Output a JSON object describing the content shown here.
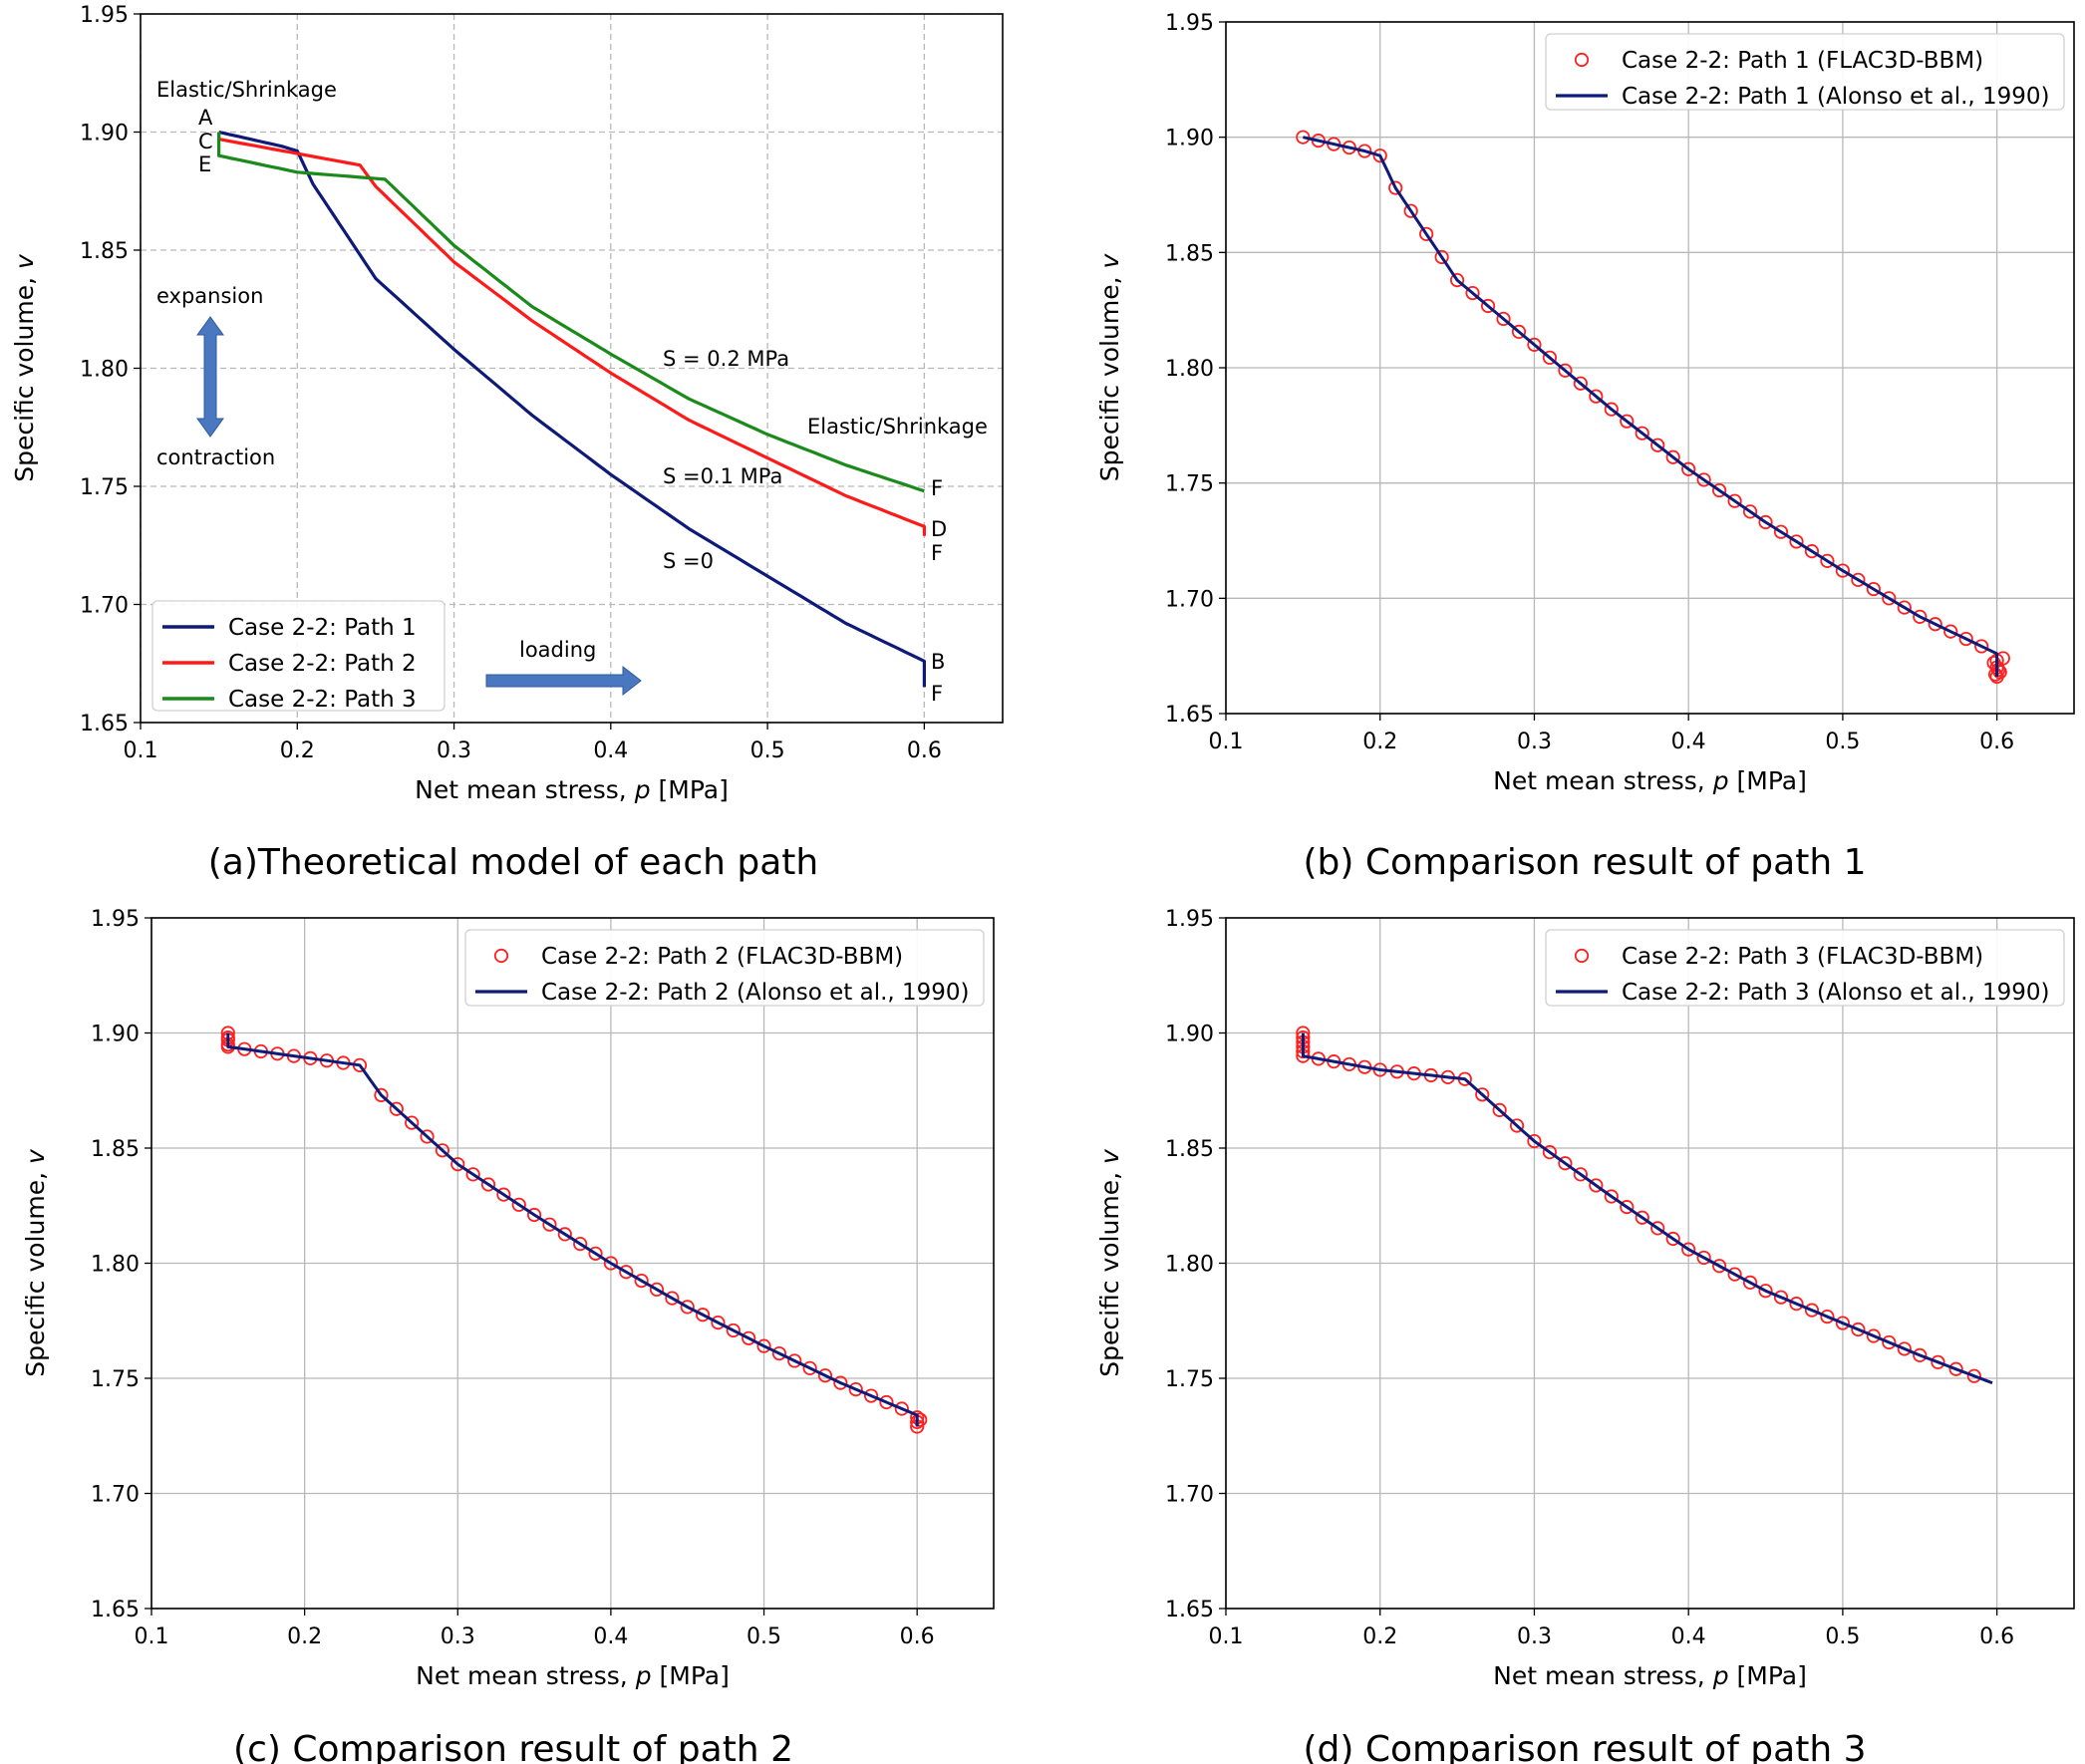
{
  "colors": {
    "path1": "#0d1a7a",
    "path2": "#ff1a1a",
    "path3": "#1a8a1a",
    "marker": "#ff2020",
    "arrow": "#4a78c0"
  },
  "chart_data": [
    {
      "id": "a",
      "type": "line",
      "caption": "(a)Theoretical model of each path",
      "xlabel": "Net mean stress, ",
      "xlabel_var": "p",
      "xlabel_unit": " [MPa]",
      "ylabel": "Specific volume, ",
      "ylabel_var": "v",
      "xlim": [
        0.1,
        0.65
      ],
      "ylim": [
        1.65,
        1.95
      ],
      "grid": "dashed",
      "xticks": [
        "0.1",
        "0.2",
        "0.3",
        "0.4",
        "0.5",
        "0.6"
      ],
      "yticks": [
        "1.65",
        "1.70",
        "1.75",
        "1.80",
        "1.85",
        "1.90",
        "1.95"
      ],
      "legend_position": "lower-left",
      "series": [
        {
          "name": "Case 2-2: Path 1",
          "color": "path1",
          "x": [
            0.15,
            0.19,
            0.2,
            0.21,
            0.25,
            0.3,
            0.35,
            0.4,
            0.45,
            0.5,
            0.55,
            0.6,
            0.6
          ],
          "y": [
            1.9,
            1.894,
            1.892,
            1.878,
            1.838,
            1.808,
            1.78,
            1.755,
            1.732,
            1.712,
            1.692,
            1.676,
            1.665
          ]
        },
        {
          "name": "Case 2-2: Path 2",
          "color": "path2",
          "x": [
            0.15,
            0.15,
            0.24,
            0.25,
            0.3,
            0.35,
            0.4,
            0.45,
            0.5,
            0.55,
            0.6,
            0.6
          ],
          "y": [
            1.9,
            1.897,
            1.886,
            1.877,
            1.845,
            1.82,
            1.798,
            1.778,
            1.762,
            1.746,
            1.733,
            1.729
          ]
        },
        {
          "name": "Case 2-2: Path 3",
          "color": "path3",
          "x": [
            0.15,
            0.15,
            0.2,
            0.256,
            0.3,
            0.35,
            0.4,
            0.45,
            0.5,
            0.55,
            0.6
          ],
          "y": [
            1.9,
            1.89,
            1.883,
            1.88,
            1.852,
            1.826,
            1.806,
            1.787,
            1.772,
            1.759,
            1.748
          ]
        }
      ],
      "annotations": {
        "elastic_shrinkage_left": "Elastic/Shrinkage",
        "elastic_shrinkage_right": "Elastic/Shrinkage",
        "A": "A",
        "C": "C",
        "E": "E",
        "F_top": "F",
        "D": "D",
        "F_mid": "F",
        "B": "B",
        "F_bot": "F",
        "expansion": "expansion",
        "contraction": "contraction",
        "loading": "loading",
        "s02": "S = 0.2 MPa",
        "s01": "S =0.1 MPa",
        "s0": "S =0"
      }
    },
    {
      "id": "b",
      "type": "line+scatter",
      "caption": "(b) Comparison result of path 1",
      "xlabel": "Net mean stress, ",
      "xlabel_var": "p",
      "xlabel_unit": " [MPa]",
      "ylabel": "Specific volume, ",
      "ylabel_var": "v",
      "xlim": [
        0.1,
        0.65
      ],
      "ylim": [
        1.65,
        1.95
      ],
      "grid": "solid",
      "xticks": [
        "0.1",
        "0.2",
        "0.3",
        "0.4",
        "0.5",
        "0.6"
      ],
      "yticks": [
        "1.65",
        "1.70",
        "1.75",
        "1.80",
        "1.85",
        "1.90",
        "1.95"
      ],
      "legend_position": "top-right",
      "series": [
        {
          "name": "Case 2-2: Path 1 (FLAC3D-BBM)",
          "kind": "markers"
        },
        {
          "name": "Case 2-2: Path 1 (Alonso et al., 1990)",
          "kind": "line",
          "x": [
            0.15,
            0.19,
            0.2,
            0.21,
            0.25,
            0.3,
            0.35,
            0.4,
            0.45,
            0.5,
            0.55,
            0.6,
            0.6
          ],
          "y": [
            1.9,
            1.894,
            1.892,
            1.878,
            1.838,
            1.81,
            1.782,
            1.756,
            1.733,
            1.712,
            1.692,
            1.676,
            1.666
          ]
        }
      ],
      "extra_markers": {
        "x": [
          0.598,
          0.6,
          0.602,
          0.6,
          0.599,
          0.601,
          0.6,
          0.604
        ],
        "y": [
          1.672,
          1.67,
          1.668,
          1.666,
          1.667,
          1.669,
          1.673,
          1.674
        ]
      }
    },
    {
      "id": "c",
      "type": "line+scatter",
      "caption": "(c) Comparison result of path 2",
      "xlabel": "Net mean stress, ",
      "xlabel_var": "p",
      "xlabel_unit": " [MPa]",
      "ylabel": "Specific volume, ",
      "ylabel_var": "v",
      "xlim": [
        0.1,
        0.65
      ],
      "ylim": [
        1.65,
        1.95
      ],
      "grid": "solid",
      "xticks": [
        "0.1",
        "0.2",
        "0.3",
        "0.4",
        "0.5",
        "0.6"
      ],
      "yticks": [
        "1.65",
        "1.70",
        "1.75",
        "1.80",
        "1.85",
        "1.90",
        "1.95"
      ],
      "legend_position": "top-right",
      "series": [
        {
          "name": "Case 2-2: Path 2 (FLAC3D-BBM)",
          "kind": "markers"
        },
        {
          "name": "Case 2-2: Path 2 (Alonso et al., 1990)",
          "kind": "line",
          "x": [
            0.15,
            0.15,
            0.236,
            0.25,
            0.3,
            0.35,
            0.4,
            0.45,
            0.5,
            0.55,
            0.6,
            0.6
          ],
          "y": [
            1.9,
            1.894,
            1.886,
            1.873,
            1.843,
            1.821,
            1.8,
            1.781,
            1.764,
            1.748,
            1.734,
            1.729
          ]
        }
      ],
      "extra_markers": {
        "x": [
          0.15,
          0.15,
          0.15,
          0.15,
          0.6,
          0.6,
          0.602,
          0.6
        ],
        "y": [
          1.9,
          1.898,
          1.897,
          1.895,
          1.733,
          1.731,
          1.732,
          1.729
        ]
      }
    },
    {
      "id": "d",
      "type": "line+scatter",
      "caption": "(d) Comparison result of path 3",
      "xlabel": "Net mean stress, ",
      "xlabel_var": "p",
      "xlabel_unit": " [MPa]",
      "ylabel": "Specific volume, ",
      "ylabel_var": "v",
      "xlim": [
        0.1,
        0.65
      ],
      "ylim": [
        1.65,
        1.95
      ],
      "grid": "solid",
      "xticks": [
        "0.1",
        "0.2",
        "0.3",
        "0.4",
        "0.5",
        "0.6"
      ],
      "yticks": [
        "1.65",
        "1.70",
        "1.75",
        "1.80",
        "1.85",
        "1.90",
        "1.95"
      ],
      "legend_position": "top-right",
      "series": [
        {
          "name": "Case 2-2: Path 3 (FLAC3D-BBM)",
          "kind": "markers"
        },
        {
          "name": "Case 2-2: Path 3 (Alonso et al., 1990)",
          "kind": "line",
          "x": [
            0.15,
            0.15,
            0.2,
            0.255,
            0.3,
            0.35,
            0.4,
            0.45,
            0.5,
            0.55,
            0.597
          ],
          "y": [
            1.9,
            1.89,
            1.884,
            1.88,
            1.853,
            1.829,
            1.806,
            1.788,
            1.774,
            1.76,
            1.748
          ]
        }
      ],
      "extra_markers": {
        "x": [
          0.15,
          0.15,
          0.15,
          0.15,
          0.15
        ],
        "y": [
          1.9,
          1.898,
          1.896,
          1.894,
          1.892
        ]
      }
    }
  ]
}
